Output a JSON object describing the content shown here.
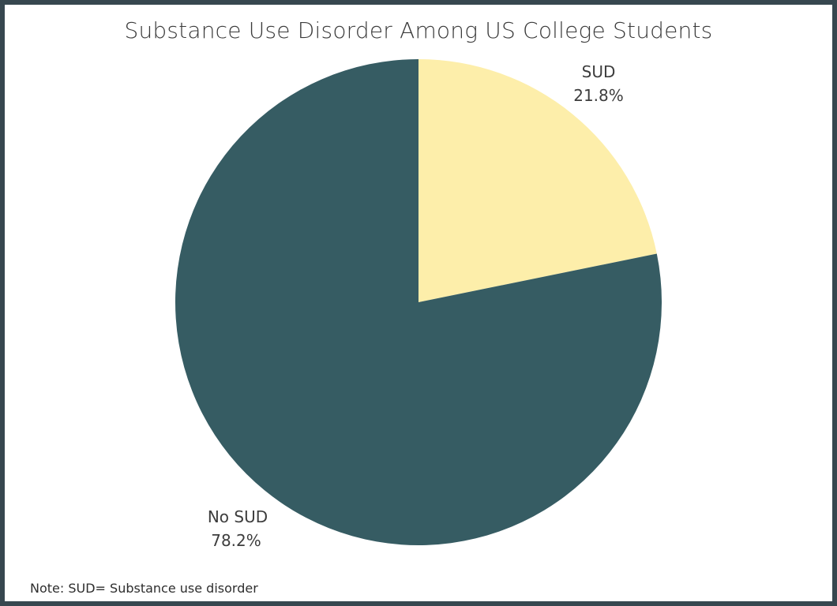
{
  "chart_data": {
    "type": "pie",
    "title": "Substance Use Disorder Among US College Students",
    "slices": [
      {
        "label": "SUD",
        "value": 21.8,
        "value_label": "21.8%",
        "color": "#fdeeaa"
      },
      {
        "label": "No SUD",
        "value": 78.2,
        "value_label": "78.2%",
        "color": "#365c63"
      }
    ],
    "start": "12 o'clock",
    "direction": "clockwise",
    "legend": "none"
  },
  "note": "Note: SUD= Substance use disorder",
  "colors": {
    "border": "#37474f",
    "background": "#ffffff"
  }
}
